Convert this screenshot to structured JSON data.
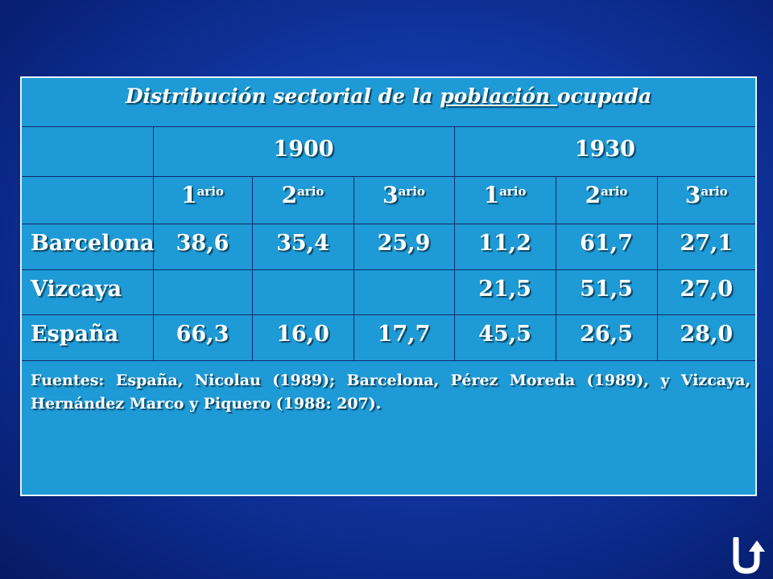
{
  "table": {
    "title_prefix": "Distribución sectorial de la ",
    "title_link": "población ",
    "title_suffix": "ocupada",
    "years": [
      "1900",
      "1930"
    ],
    "sectors": [
      {
        "base": "1",
        "sup": "ario"
      },
      {
        "base": "2",
        "sup": "ario"
      },
      {
        "base": "3",
        "sup": "ario"
      },
      {
        "base": "1",
        "sup": "ario"
      },
      {
        "base": "2",
        "sup": "ario"
      },
      {
        "base": "3",
        "sup": "ario"
      }
    ],
    "rows": [
      {
        "region": "Barcelona",
        "values": [
          "38,6",
          "35,4",
          "25,9",
          "11,2",
          "61,7",
          "27,1"
        ]
      },
      {
        "region": "Vizcaya",
        "values": [
          "",
          "",
          "",
          "21,5",
          "51,5",
          "27,0"
        ]
      },
      {
        "region": "España",
        "values": [
          "66,3",
          "16,0",
          "17,7",
          "45,5",
          "26,5",
          "28,0"
        ]
      }
    ],
    "source": "Fuentes: España, Nicolau (1989); Barcelona, Pérez Moreda (1989), y Vizcaya, Hernández Marco y Piquero (1988: 207)."
  },
  "navigation": {
    "return_icon": "return-arrow-icon",
    "accent_color": "#1e9ad6"
  }
}
